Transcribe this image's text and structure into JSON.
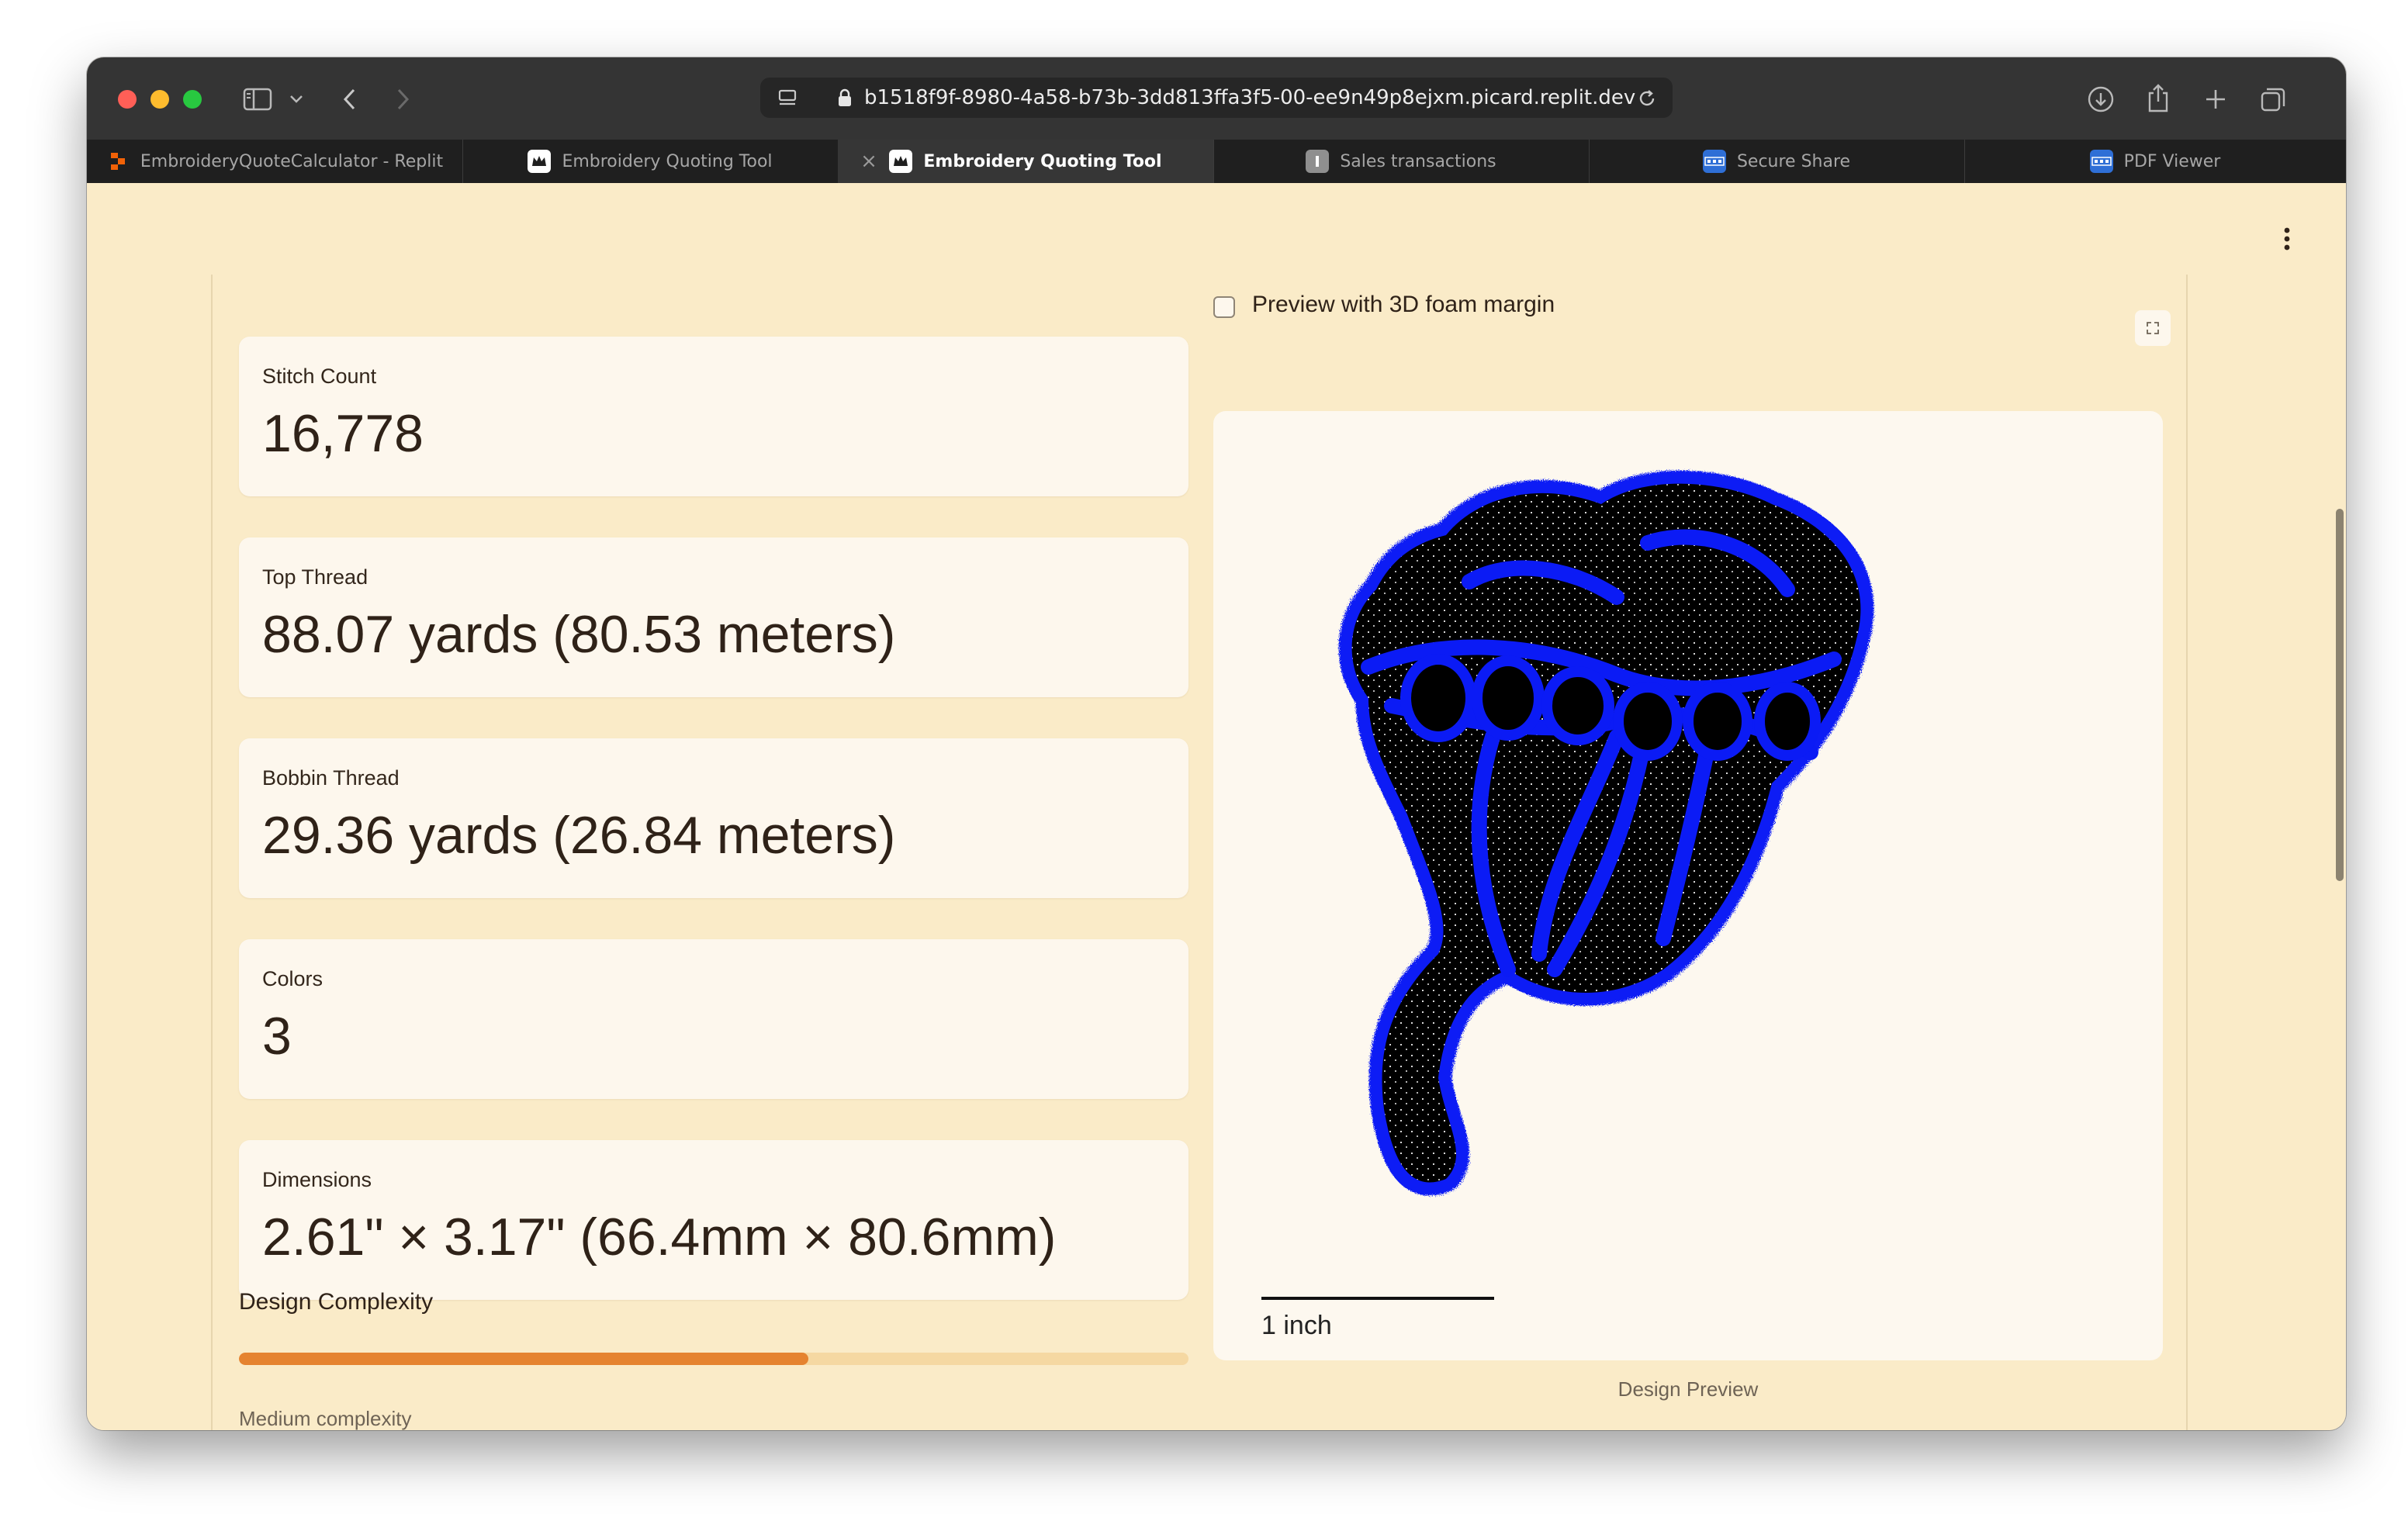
{
  "browser": {
    "url": "b1518f9f-8980-4a58-b73b-3dd813ffa3f5-00-ee9n49p8ejxm.picard.replit.dev",
    "tabs": [
      {
        "label": "EmbroideryQuoteCalculator - Replit",
        "icon": "replit-icon",
        "active": false
      },
      {
        "label": "Embroidery Quoting Tool",
        "icon": "app-crown-icon",
        "active": false
      },
      {
        "label": "Embroidery Quoting Tool",
        "icon": "app-crown-icon",
        "active": true
      },
      {
        "label": "Sales transactions",
        "icon": "document-icon",
        "active": false
      },
      {
        "label": "Secure Share",
        "icon": "dsm-icon",
        "active": false
      },
      {
        "label": "PDF Viewer",
        "icon": "dsm-icon",
        "active": false
      }
    ]
  },
  "metrics": [
    {
      "label": "Stitch Count",
      "value": "16,778"
    },
    {
      "label": "Top Thread",
      "value": "88.07 yards (80.53 meters)"
    },
    {
      "label": "Bobbin Thread",
      "value": "29.36 yards (26.84 meters)"
    },
    {
      "label": "Colors",
      "value": "3"
    },
    {
      "label": "Dimensions",
      "value": "2.61\" × 3.17\" (66.4mm × 80.6mm)"
    }
  ],
  "complexity": {
    "title": "Design Complexity",
    "progress": 0.6,
    "caption": "Medium complexity"
  },
  "preview": {
    "checkbox_label": "Preview with 3D foam margin",
    "checkbox_checked": false,
    "scale_label": "1 inch",
    "caption": "Design Preview",
    "colors": {
      "outline": "#0b1bf5",
      "fill": "#000000",
      "stitch": "#ffffff"
    }
  }
}
